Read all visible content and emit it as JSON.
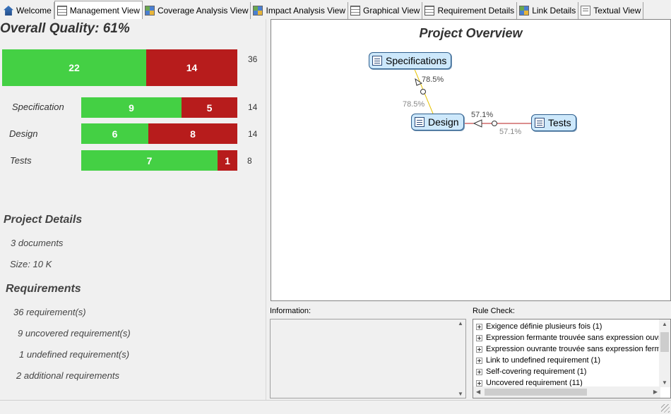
{
  "tabs": [
    {
      "label": "Welcome",
      "icon": "home-icon"
    },
    {
      "label": "Management View",
      "icon": "grid-icon"
    },
    {
      "label": "Coverage Analysis View",
      "icon": "boxes-icon"
    },
    {
      "label": "Impact Analysis View",
      "icon": "boxes-icon"
    },
    {
      "label": "Graphical View",
      "icon": "grid-icon"
    },
    {
      "label": "Requirement Details",
      "icon": "grid-icon"
    },
    {
      "label": "Link Details",
      "icon": "boxes-icon"
    },
    {
      "label": "Textual View",
      "icon": "doc-icon"
    }
  ],
  "active_tab": "Management View",
  "management": {
    "title": "Overall Quality: 61%",
    "overall": {
      "covered": 22,
      "uncovered": 14,
      "total": 36
    },
    "rows": [
      {
        "label": "Specification",
        "covered": 9,
        "uncovered": 5,
        "total": 14
      },
      {
        "label": "Design",
        "covered": 6,
        "uncovered": 8,
        "total": 14
      },
      {
        "label": "Tests",
        "covered": 7,
        "uncovered": 1,
        "total": 8
      }
    ],
    "colors": {
      "covered": "#44d044",
      "uncovered": "#b71c1c"
    }
  },
  "project_details": {
    "title": "Project Details",
    "documents": "3 documents",
    "size": "Size: 10 K"
  },
  "requirements": {
    "title": "Requirements",
    "total": "36 requirement(s)",
    "uncovered": "9 uncovered requirement(s)",
    "undefined": "1 undefined requirement(s)",
    "additional": "2 additional requirements"
  },
  "overview": {
    "title": "Project Overview",
    "nodes": {
      "specifications": "Specifications",
      "design": "Design",
      "tests": "Tests"
    },
    "links": {
      "spec_design_top": "78.5%",
      "spec_design_bottom": "78.5%",
      "design_tests_top": "57.1%",
      "design_tests_bottom": "57.1%"
    }
  },
  "information": {
    "label": "Information:"
  },
  "rule_check": {
    "label": "Rule Check:",
    "items": [
      "Exigence définie plusieurs fois (1)",
      "Expression fermante trouvée sans expression ouvrante",
      "Expression ouvrante trouvée sans expression fermante",
      "Link to undefined requirement (1)",
      "Self-covering requirement (1)",
      "Uncovered requirement (11)"
    ]
  }
}
